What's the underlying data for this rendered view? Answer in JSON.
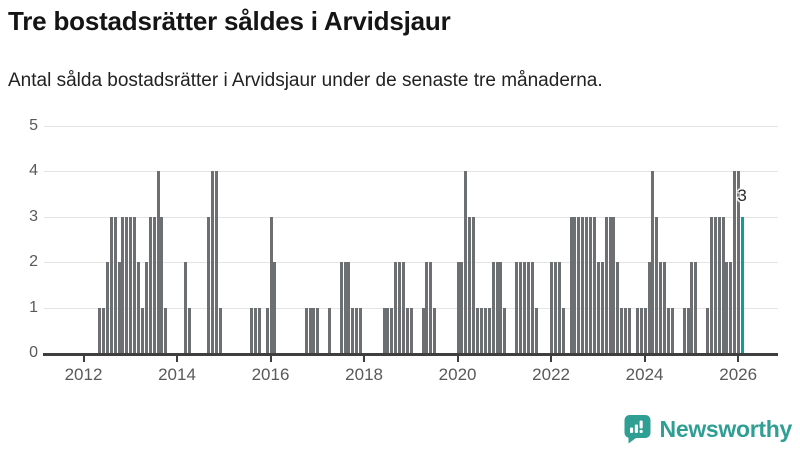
{
  "header": {
    "title": "Tre bostadsrätter såldes i Arvidsjaur",
    "subtitle": "Antal sålda bostadsrätter i Arvidsjaur under de senaste tre månaderna."
  },
  "chart_data": {
    "type": "bar",
    "title": "Tre bostadsrätter såldes i Arvidsjaur",
    "subtitle": "Antal sålda bostadsrätter i Arvidsjaur under de senaste tre månaderna.",
    "x_start_month": "2011-03",
    "x_end_month": "2026-02",
    "values": [
      0,
      0,
      0,
      0,
      0,
      0,
      0,
      0,
      0,
      0,
      0,
      0,
      0,
      0,
      1,
      1,
      2,
      3,
      3,
      2,
      3,
      3,
      3,
      3,
      2,
      1,
      2,
      3,
      3,
      4,
      3,
      1,
      0,
      0,
      0,
      0,
      2,
      1,
      0,
      0,
      0,
      0,
      3,
      4,
      4,
      1,
      0,
      0,
      0,
      0,
      0,
      0,
      0,
      1,
      1,
      1,
      0,
      1,
      3,
      2,
      0,
      0,
      0,
      0,
      0,
      0,
      0,
      1,
      1,
      1,
      1,
      0,
      0,
      1,
      0,
      0,
      2,
      2,
      2,
      1,
      1,
      1,
      0,
      0,
      0,
      0,
      0,
      1,
      1,
      1,
      2,
      2,
      2,
      1,
      1,
      0,
      0,
      1,
      2,
      2,
      1,
      0,
      0,
      0,
      0,
      0,
      2,
      2,
      4,
      3,
      3,
      1,
      1,
      1,
      1,
      2,
      2,
      2,
      1,
      0,
      0,
      2,
      2,
      2,
      2,
      2,
      1,
      0,
      0,
      0,
      2,
      2,
      2,
      1,
      0,
      3,
      3,
      3,
      3,
      3,
      3,
      3,
      2,
      2,
      3,
      3,
      3,
      2,
      1,
      1,
      1,
      0,
      1,
      1,
      1,
      2,
      4,
      3,
      2,
      2,
      1,
      1,
      0,
      0,
      1,
      1,
      2,
      2,
      0,
      0,
      1,
      3,
      3,
      3,
      3,
      2,
      2,
      4,
      4,
      3
    ],
    "last_value": 3,
    "last_value_label": "3",
    "y_ticks": [
      0,
      1,
      2,
      3,
      4,
      5
    ],
    "ylim": [
      0,
      5
    ],
    "x_ticks": [
      2012,
      2014,
      2016,
      2018,
      2020,
      2022,
      2024,
      2026
    ],
    "grid": true,
    "legend": "none",
    "bar_color": "#6d7073",
    "highlight_color": "#0f9e98",
    "axis_color": "#3f3f3f",
    "grid_color": "#e4e4e4",
    "tick_label_color": "#595959"
  },
  "footer": {
    "brand": "Newsworthy",
    "brand_color": "#2f9e93",
    "logo_icon": "bar-chart-speech-bubble-icon"
  }
}
